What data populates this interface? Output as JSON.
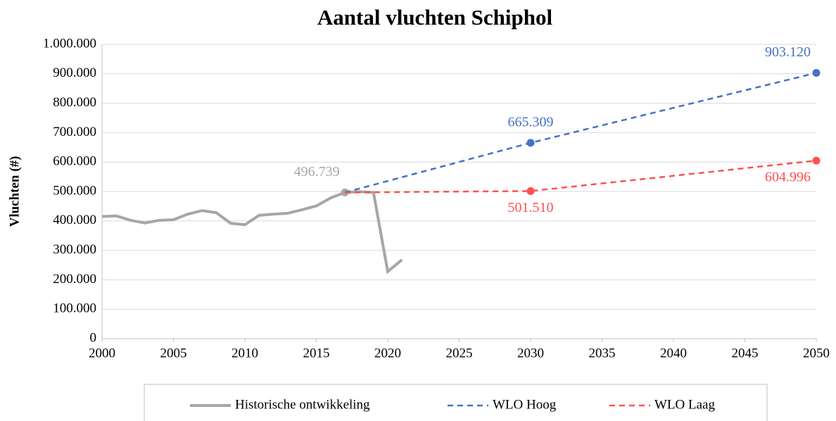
{
  "chart_data": {
    "type": "line",
    "title": "Aantal vluchten Schiphol",
    "y_label": "Vluchten (#)",
    "xlim": [
      2000,
      2050
    ],
    "xticks": [
      2000,
      2005,
      2010,
      2015,
      2020,
      2025,
      2030,
      2035,
      2040,
      2045,
      2050
    ],
    "ylim": [
      0,
      1000000
    ],
    "yticks": [
      0,
      {
        "value": 100000,
        "label": "100.000"
      },
      {
        "value": 200000,
        "label": "200.000"
      },
      {
        "value": 300000,
        "label": "300.000"
      },
      {
        "value": 400000,
        "label": "400.000"
      },
      {
        "value": 500000,
        "label": "500.000"
      },
      {
        "value": 600000,
        "label": "600.000"
      },
      {
        "value": 700000,
        "label": "700.000"
      },
      {
        "value": 800000,
        "label": "800.000"
      },
      {
        "value": 900000,
        "label": "900.000"
      },
      {
        "value": 1000000,
        "label": "1.000.000"
      }
    ],
    "grid": true,
    "legend": "bottom",
    "series": [
      {
        "name": "Historische ontwikkeling",
        "color": "#a6a6a6",
        "dash": false,
        "x": [
          2000,
          2001,
          2002,
          2003,
          2004,
          2005,
          2006,
          2007,
          2008,
          2009,
          2010,
          2011,
          2012,
          2013,
          2014,
          2015,
          2016,
          2017,
          2018,
          2019,
          2020,
          2021
        ],
        "values": [
          415000,
          417000,
          402000,
          393000,
          402000,
          404000,
          423000,
          435000,
          428000,
          392000,
          387000,
          419000,
          423000,
          426000,
          438000,
          451000,
          478000,
          496739,
          499000,
          497000,
          228000,
          268000
        ],
        "value_labels": [
          null,
          null,
          null,
          null,
          null,
          null,
          null,
          null,
          null,
          null,
          null,
          null,
          null,
          null,
          null,
          null,
          null,
          "496.739",
          null,
          null,
          null,
          null
        ]
      },
      {
        "name": "WLO Hoog",
        "color": "#4472c4",
        "dash": true,
        "x": [
          2017,
          2030,
          2050
        ],
        "values": [
          496739,
          665309,
          903120
        ],
        "value_labels": [
          null,
          "665.309",
          "903.120"
        ]
      },
      {
        "name": "WLO Laag",
        "color": "#ff5050",
        "dash": true,
        "x": [
          2017,
          2030,
          2050
        ],
        "values": [
          496739,
          501510,
          604996
        ],
        "value_labels": [
          null,
          "501.510",
          "604.996"
        ]
      }
    ]
  }
}
